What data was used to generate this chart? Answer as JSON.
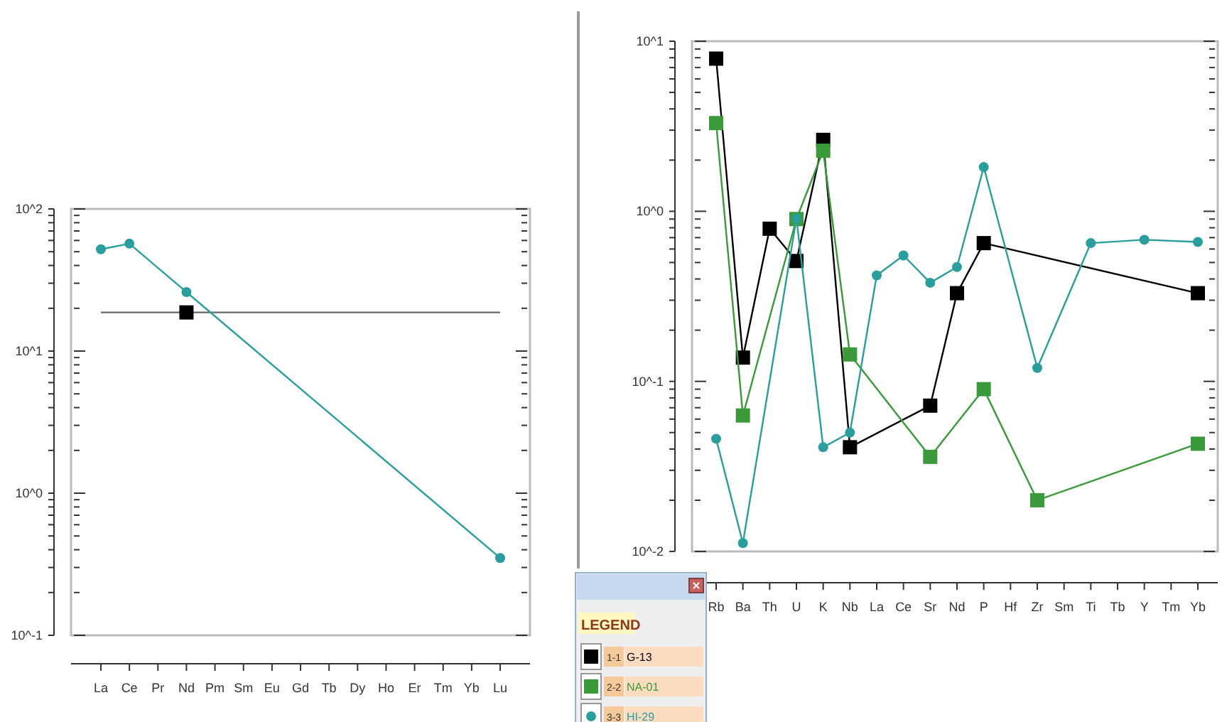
{
  "chart_data": [
    {
      "type": "line",
      "categories": [
        "La",
        "Ce",
        "Pr",
        "Nd",
        "Pm",
        "Sm",
        "Eu",
        "Gd",
        "Tb",
        "Dy",
        "Ho",
        "Er",
        "Tm",
        "Yb",
        "Lu"
      ],
      "series": [
        {
          "color": "#000000",
          "marker": "square",
          "values": [
            null,
            null,
            null,
            18.7,
            null,
            null,
            null,
            null,
            null,
            null,
            null,
            null,
            null,
            null,
            null
          ]
        },
        {
          "color": "#2a9d9d",
          "marker": "circle",
          "values": [
            52,
            57,
            null,
            26,
            null,
            null,
            null,
            null,
            null,
            null,
            null,
            null,
            null,
            null,
            0.35
          ]
        }
      ],
      "ref_lines": [
        {
          "axis": "y",
          "value": 18.7,
          "color": "#666666"
        }
      ],
      "log": true,
      "ylim": [
        0.1,
        100
      ],
      "yticks": [
        {
          "value": 0.1,
          "label": "10^-1"
        },
        {
          "value": 0.2,
          "label": null
        },
        {
          "value": 0.3,
          "label": null
        },
        {
          "value": 0.4,
          "label": null
        },
        {
          "value": 0.5,
          "label": null
        },
        {
          "value": 0.6,
          "label": null
        },
        {
          "value": 0.7,
          "label": null
        },
        {
          "value": 0.8,
          "label": null
        },
        {
          "value": 0.9,
          "label": null
        },
        {
          "value": 1,
          "label": "10^0"
        },
        {
          "value": 2,
          "label": null
        },
        {
          "value": 3,
          "label": null
        },
        {
          "value": 4,
          "label": null
        },
        {
          "value": 5,
          "label": null
        },
        {
          "value": 6,
          "label": null
        },
        {
          "value": 7,
          "label": null
        },
        {
          "value": 8,
          "label": null
        },
        {
          "value": 9,
          "label": null
        },
        {
          "value": 10,
          "label": "10^1"
        },
        {
          "value": 20,
          "label": null
        },
        {
          "value": 30,
          "label": null
        },
        {
          "value": 40,
          "label": null
        },
        {
          "value": 50,
          "label": null
        },
        {
          "value": 60,
          "label": null
        },
        {
          "value": 70,
          "label": null
        },
        {
          "value": 80,
          "label": null
        },
        {
          "value": 90,
          "label": null
        },
        {
          "value": 100,
          "label": "10^2"
        }
      ],
      "grid": false
    },
    {
      "type": "line",
      "categories": [
        "Rb",
        "Ba",
        "Th",
        "U",
        "K",
        "Nb",
        "La",
        "Ce",
        "Sr",
        "Nd",
        "P",
        "Hf",
        "Zr",
        "Sm",
        "Ti",
        "Tb",
        "Y",
        "Tm",
        "Yb"
      ],
      "series": [
        {
          "name": "G-13",
          "color": "#000000",
          "marker": "square",
          "values": [
            7.9,
            0.138,
            0.79,
            0.51,
            2.63,
            0.041,
            null,
            null,
            0.072,
            0.33,
            0.65,
            null,
            null,
            null,
            null,
            null,
            null,
            null,
            0.33
          ]
        },
        {
          "name": "NA-01",
          "color": "#3a9a3a",
          "marker": "square",
          "values": [
            3.3,
            0.063,
            null,
            0.9,
            2.27,
            0.144,
            null,
            null,
            0.036,
            null,
            0.09,
            null,
            0.02,
            null,
            null,
            null,
            null,
            null,
            0.043
          ]
        },
        {
          "name": "HI-29",
          "color": "#2a9d9d",
          "marker": "circle",
          "values": [
            0.046,
            0.0112,
            null,
            0.91,
            0.041,
            0.05,
            0.42,
            0.55,
            0.38,
            0.47,
            1.82,
            null,
            0.12,
            null,
            0.65,
            null,
            0.68,
            null,
            0.66
          ]
        }
      ],
      "legend": "bottom left",
      "legend_title": "LEGEND",
      "annotations": [
        "1-1",
        "2-2",
        "3-3"
      ],
      "log": true,
      "ylim": [
        0.01,
        10
      ],
      "yticks": [
        {
          "value": 0.01,
          "label": "10^-2"
        },
        {
          "value": 0.02,
          "label": null
        },
        {
          "value": 0.03,
          "label": null
        },
        {
          "value": 0.04,
          "label": null
        },
        {
          "value": 0.05,
          "label": null
        },
        {
          "value": 0.06,
          "label": null
        },
        {
          "value": 0.07,
          "label": null
        },
        {
          "value": 0.08,
          "label": null
        },
        {
          "value": 0.09,
          "label": null
        },
        {
          "value": 0.1,
          "label": "10^-1"
        },
        {
          "value": 0.2,
          "label": null
        },
        {
          "value": 0.3,
          "label": null
        },
        {
          "value": 0.4,
          "label": null
        },
        {
          "value": 0.5,
          "label": null
        },
        {
          "value": 0.6,
          "label": null
        },
        {
          "value": 0.7,
          "label": null
        },
        {
          "value": 0.8,
          "label": null
        },
        {
          "value": 0.9,
          "label": null
        },
        {
          "value": 1,
          "label": "10^0"
        },
        {
          "value": 2,
          "label": null
        },
        {
          "value": 3,
          "label": null
        },
        {
          "value": 4,
          "label": null
        },
        {
          "value": 5,
          "label": null
        },
        {
          "value": 6,
          "label": null
        },
        {
          "value": 7,
          "label": null
        },
        {
          "value": 8,
          "label": null
        },
        {
          "value": 9,
          "label": null
        },
        {
          "value": 10,
          "label": "10^1"
        }
      ],
      "grid": false
    }
  ]
}
